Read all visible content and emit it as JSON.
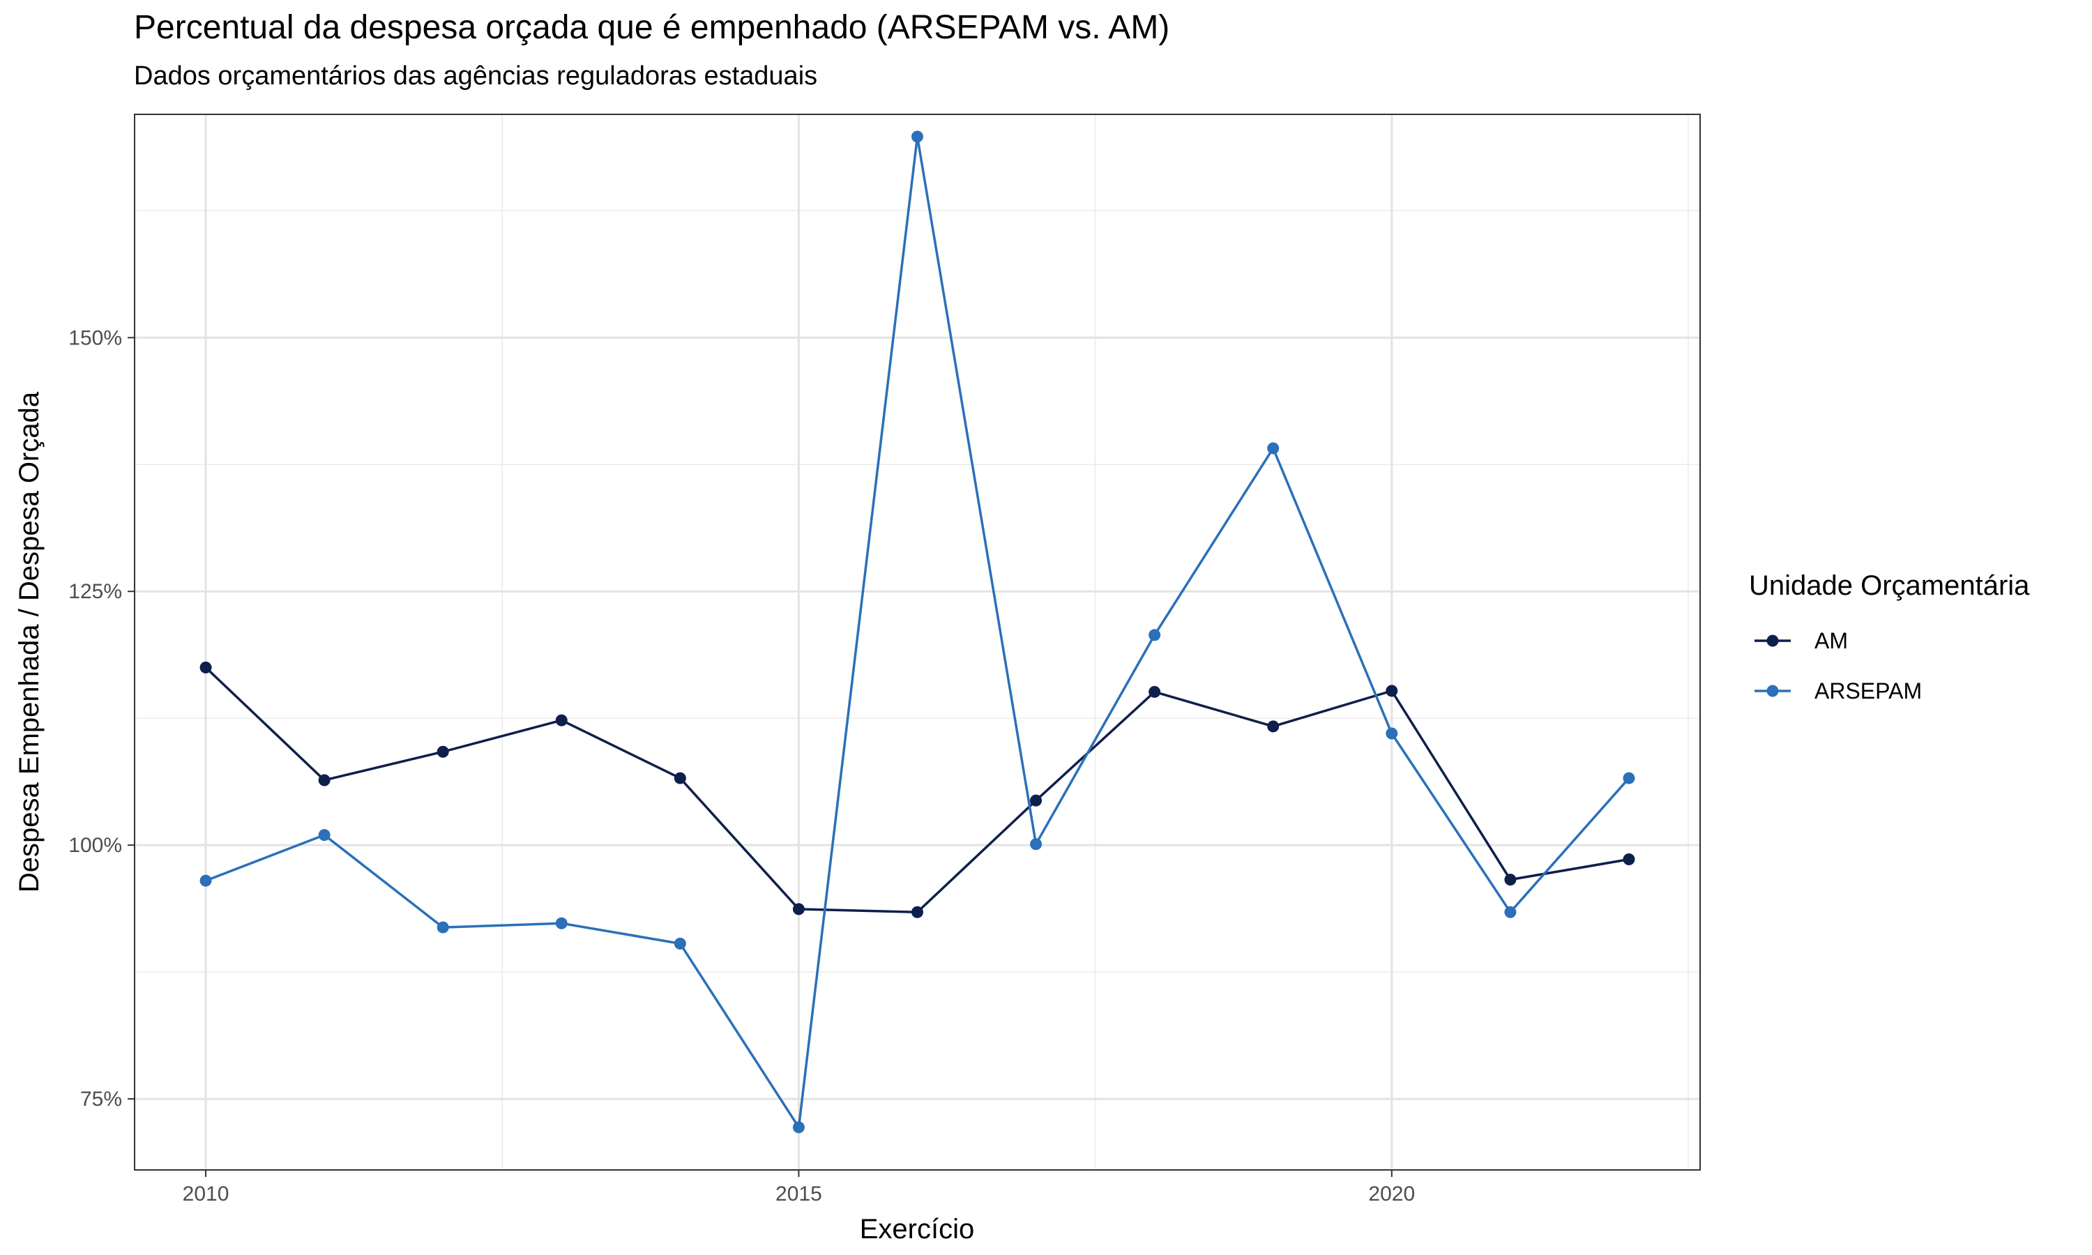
{
  "chart_data": {
    "type": "line",
    "title": "Percentual da despesa orçada que é empenhado (ARSEPAM vs. AM)",
    "subtitle": "Dados orçamentários das agências reguladoras estaduais",
    "xlabel": "Exercício",
    "ylabel": "Despesa Empenhada / Despesa Orçada",
    "x": [
      2010,
      2011,
      2012,
      2013,
      2014,
      2015,
      2016,
      2017,
      2018,
      2019,
      2020,
      2021,
      2022
    ],
    "xlim": [
      2009.4,
      2022.6
    ],
    "ylim": [
      0.68,
      1.72
    ],
    "x_ticks": [
      2010,
      2015,
      2020
    ],
    "x_tick_labels": [
      "2010",
      "2015",
      "2020"
    ],
    "y_ticks": [
      0.75,
      1.0,
      1.25,
      1.5
    ],
    "y_tick_labels": [
      "75%",
      "100%",
      "125%",
      "150%"
    ],
    "grid": true,
    "legend": {
      "title": "Unidade Orçamentária",
      "placement": "right"
    },
    "series": [
      {
        "name": "AM",
        "color": "#0f1f4b",
        "values": [
          1.175,
          1.064,
          1.092,
          1.123,
          1.066,
          0.937,
          0.934,
          1.044,
          1.151,
          1.117,
          1.152,
          0.966,
          0.986
        ]
      },
      {
        "name": "ARSEPAM",
        "color": "#2b70b8",
        "values": [
          0.965,
          1.01,
          0.919,
          0.923,
          0.903,
          0.722,
          1.698,
          1.001,
          1.207,
          1.391,
          1.11,
          0.934,
          1.066
        ]
      }
    ]
  }
}
